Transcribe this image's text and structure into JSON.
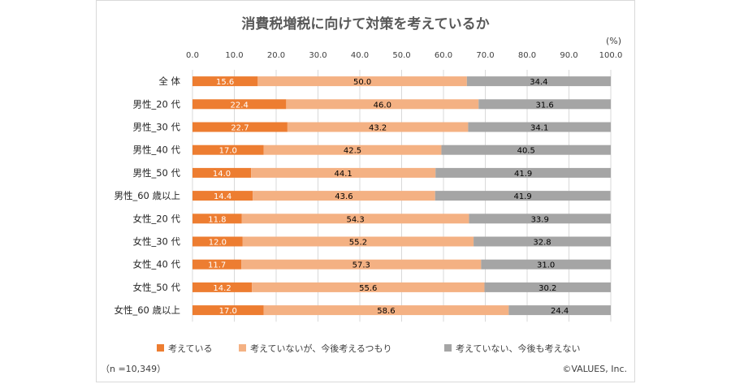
{
  "chart_data": {
    "type": "bar",
    "orientation": "horizontal",
    "stacked": true,
    "title": "消費税増税に向けて対策を考えているか",
    "unit_label": "(%)",
    "xlim": [
      0,
      100
    ],
    "x_ticks": [
      "0.0",
      "10.0",
      "20.0",
      "30.0",
      "40.0",
      "50.0",
      "60.0",
      "70.0",
      "80.0",
      "90.0",
      "100.0"
    ],
    "categories": [
      "全 体",
      "男性_20 代",
      "男性_30 代",
      "男性_40 代",
      "男性_50 代",
      "男性_60 歳以上",
      "女性_20 代",
      "女性_30 代",
      "女性_40 代",
      "女性_50 代",
      "女性_60 歳以上"
    ],
    "series": [
      {
        "name": "考えている",
        "color": "#ed7d31",
        "label_color": "#ffffff",
        "values": [
          15.6,
          22.4,
          22.7,
          17.0,
          14.0,
          14.4,
          11.8,
          12.0,
          11.7,
          14.2,
          17.0
        ],
        "labels": [
          "15.6",
          "22.4",
          "22.7",
          "17.0",
          "14.0",
          "14.4",
          "11.8",
          "12.0",
          "11.7",
          "14.2",
          "17.0"
        ]
      },
      {
        "name": "考えていないが、今後考えるつもり",
        "color": "#f4b183",
        "label_color": "#000000",
        "values": [
          50.0,
          46.0,
          43.2,
          42.5,
          44.1,
          43.6,
          54.3,
          55.2,
          57.3,
          55.6,
          58.6
        ],
        "labels": [
          "50.0",
          "46.0",
          "43.2",
          "42.5",
          "44.1",
          "43.6",
          "54.3",
          "55.2",
          "57.3",
          "55.6",
          "58.6"
        ]
      },
      {
        "name": "考えていない、今後も考えない",
        "color": "#a5a5a5",
        "label_color": "#000000",
        "values": [
          34.4,
          31.6,
          34.1,
          40.5,
          41.9,
          41.9,
          33.9,
          32.8,
          31.0,
          30.2,
          24.4
        ],
        "labels": [
          "34.4",
          "31.6",
          "34.1",
          "40.5",
          "41.9",
          "41.9",
          "33.9",
          "32.8",
          "31.0",
          "30.2",
          "24.4"
        ]
      }
    ],
    "legend_position": "bottom",
    "grid": true
  },
  "footnote_left": "（n =10,349）",
  "footnote_right": "©VALUES, Inc."
}
